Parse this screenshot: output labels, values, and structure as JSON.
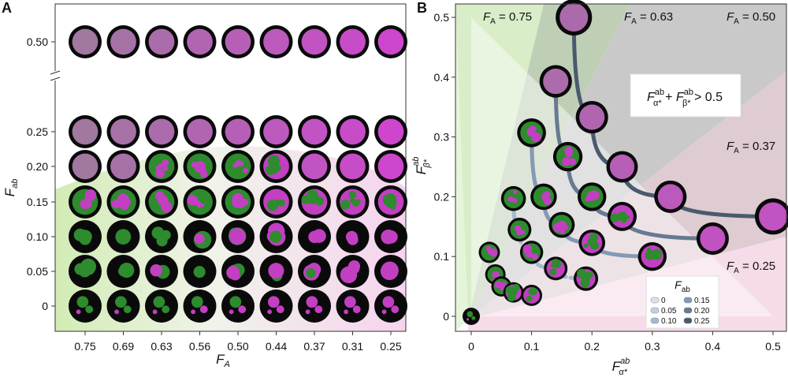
{
  "panels": {
    "a": "A",
    "b": "B"
  },
  "colors": {
    "green_cell": "#2e8b2e",
    "magenta_cell": "#c23fc2",
    "mixed_cell": "#a06aa6",
    "disk": "#0a0a0a",
    "rim": "#222222",
    "green_region": "#dcefcc",
    "magenta_region": "#f4dbe9",
    "grey_region": "#c8c8c8"
  },
  "chart_data": [
    {
      "type": "table",
      "panel": "A",
      "xlabel": "F",
      "xlabel_sub": "A",
      "ylabel": "F",
      "ylabel_sub": "ab",
      "x_ticks": [
        "0.75",
        "0.69",
        "0.63",
        "0.56",
        "0.50",
        "0.44",
        "0.37",
        "0.31",
        "0.25"
      ],
      "y_ticks_lower": [
        "0.25",
        "0.20",
        "0.15",
        "0.10",
        "0.05",
        "0"
      ],
      "y_ticks_upper": [
        "0.50"
      ],
      "axis_break": true,
      "note": "each cell is a colony image at (F_A, F_ab); colony appearance encoded as mixed / patchy / sectored",
      "rows": [
        {
          "F_ab": 0.5,
          "pattern": [
            "mixed",
            "mixed",
            "mixed",
            "mixed",
            "mixed",
            "mixed",
            "mixed",
            "mixed",
            "mixed"
          ]
        },
        {
          "F_ab": 0.25,
          "pattern": [
            "mixed",
            "mixed",
            "mixed",
            "mixed",
            "mixed",
            "mixed",
            "mixed",
            "mixed",
            "mixed"
          ]
        },
        {
          "F_ab": 0.2,
          "pattern": [
            "mixed",
            "mixed",
            "patchy",
            "patchy",
            "patchy",
            "patchy",
            "mixed",
            "mixed",
            "mixed"
          ]
        },
        {
          "F_ab": 0.15,
          "pattern": [
            "green",
            "green",
            "green",
            "patchy",
            "patchy",
            "patchy",
            "patchy",
            "patchy",
            "magenta"
          ]
        },
        {
          "F_ab": 0.1,
          "pattern": [
            "sectored",
            "sectored",
            "sectored",
            "sectored",
            "sectored",
            "sectored",
            "sectored",
            "sectored",
            "sectored"
          ]
        },
        {
          "F_ab": 0.05,
          "pattern": [
            "sectored",
            "sectored",
            "sectored",
            "sectored",
            "sectored",
            "sectored",
            "sectored",
            "sectored",
            "sectored"
          ]
        },
        {
          "F_ab": 0.0,
          "pattern": [
            "islands",
            "islands",
            "islands",
            "islands",
            "islands",
            "islands",
            "islands",
            "islands",
            "islands"
          ]
        }
      ]
    },
    {
      "type": "scatter",
      "panel": "B",
      "xlabel": "F",
      "xlabel_sup": "ab",
      "xlabel_sub": "α*",
      "ylabel": "F",
      "ylabel_sup": "ab",
      "ylabel_sub": "β*",
      "xlim": [
        -0.02,
        0.52
      ],
      "ylim": [
        -0.03,
        0.52
      ],
      "x_ticks": [
        "0",
        "0.1",
        "0.2",
        "0.3",
        "0.4",
        "0.5"
      ],
      "y_ticks": [
        "0",
        "0.1",
        "0.2",
        "0.3",
        "0.4",
        "0.5"
      ],
      "region_labels": [
        {
          "text": "F",
          "sub": "A",
          "value": " = 0.75"
        },
        {
          "text": "F",
          "sub": "A",
          "value": " = 0.63"
        },
        {
          "text": "F",
          "sub": "A",
          "value": " = 0.50"
        },
        {
          "text": "F",
          "sub": "A",
          "value": " = 0.37"
        },
        {
          "text": "F",
          "sub": "A",
          "value": " = 0.25"
        }
      ],
      "annotation": {
        "a": "F",
        "a_sup": "ab",
        "a_sub": "α*",
        "plus": " + ",
        "b": "F",
        "b_sup": "ab",
        "b_sub": "β*",
        "tail": " > 0.5"
      },
      "legend_title": "F",
      "legend_title_sub": "ab",
      "legend": [
        {
          "label": "0",
          "color": "#d8e2ee"
        },
        {
          "label": "0.05",
          "color": "#c0d0e2"
        },
        {
          "label": "0.10",
          "color": "#a6bad2"
        },
        {
          "label": "0.15",
          "color": "#8499b3"
        },
        {
          "label": "0.20",
          "color": "#677a91"
        },
        {
          "label": "0.25",
          "color": "#4a5a6e"
        }
      ],
      "series": [
        {
          "name": "0",
          "color": "#d8e2ee",
          "points": [
            [
              0.0,
              0.0
            ]
          ]
        },
        {
          "name": "0.05",
          "color": "#c0d0e2",
          "points": [
            [
              0.03,
              0.107
            ],
            [
              0.04,
              0.07
            ],
            [
              0.05,
              0.05
            ],
            [
              0.07,
              0.04
            ],
            [
              0.1,
              0.035
            ]
          ]
        },
        {
          "name": "0.10",
          "color": "#a6bad2",
          "points": [
            [
              0.07,
              0.197
            ],
            [
              0.08,
              0.145
            ],
            [
              0.1,
              0.107
            ],
            [
              0.14,
              0.08
            ],
            [
              0.19,
              0.063
            ]
          ]
        },
        {
          "name": "0.15",
          "color": "#8499b3",
          "points": [
            [
              0.1,
              0.307
            ],
            [
              0.12,
              0.2
            ],
            [
              0.15,
              0.153
            ],
            [
              0.2,
              0.123
            ],
            [
              0.3,
              0.1
            ]
          ]
        },
        {
          "name": "0.20",
          "color": "#677a91",
          "points": [
            [
              0.14,
              0.393
            ],
            [
              0.16,
              0.267
            ],
            [
              0.2,
              0.2
            ],
            [
              0.25,
              0.167
            ],
            [
              0.4,
              0.13
            ]
          ]
        },
        {
          "name": "0.25",
          "color": "#4a5a6e",
          "points": [
            [
              0.17,
              0.5
            ],
            [
              0.2,
              0.333
            ],
            [
              0.25,
              0.25
            ],
            [
              0.33,
              0.2
            ],
            [
              0.5,
              0.167
            ]
          ]
        }
      ]
    }
  ]
}
